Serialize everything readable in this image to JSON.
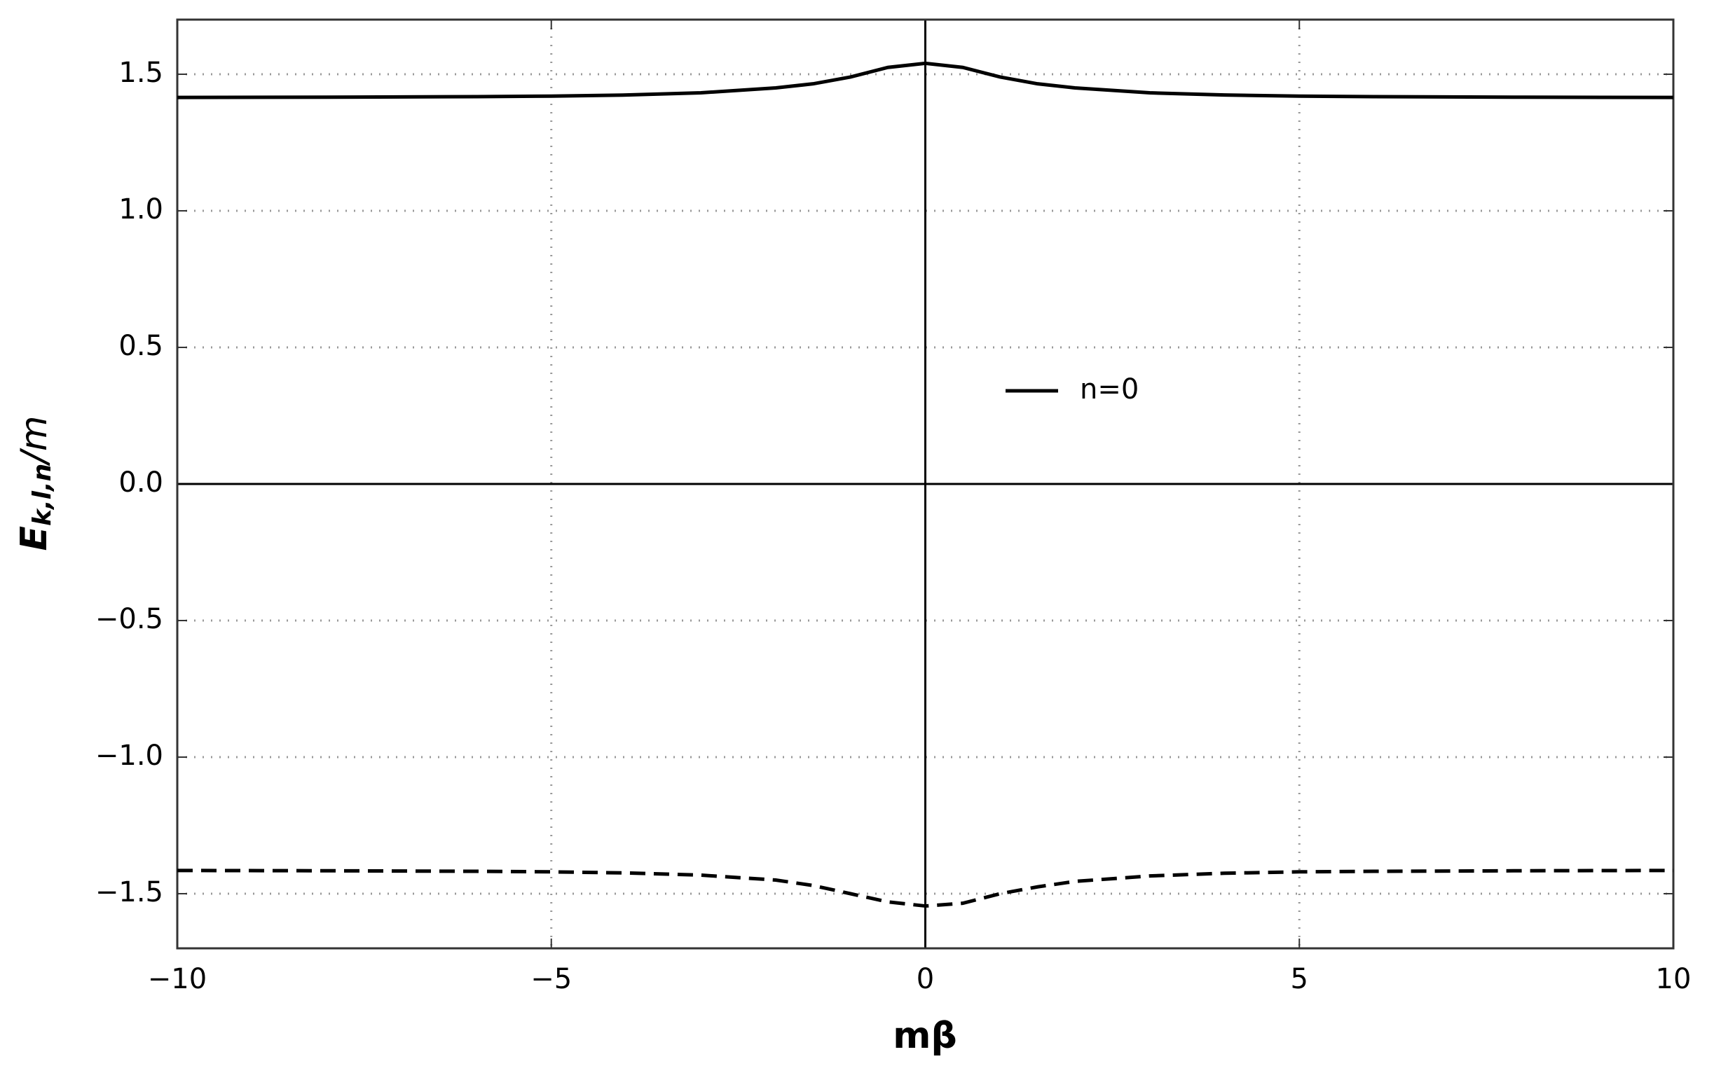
{
  "chart_data": {
    "type": "line",
    "xlabel": "mβ",
    "ylabel": [
      "E",
      "k,l,n",
      "/m"
    ],
    "x": [
      -10,
      -8,
      -6,
      -5,
      -4,
      -3,
      -2,
      -1.5,
      -1,
      -0.5,
      0,
      0.5,
      1,
      1.5,
      2,
      3,
      4,
      5,
      6,
      8,
      10
    ],
    "series": [
      {
        "name": "n=0",
        "color": "#000000",
        "dashed": false,
        "values": [
          1.415,
          1.416,
          1.418,
          1.42,
          1.424,
          1.432,
          1.45,
          1.465,
          1.49,
          1.525,
          1.54,
          1.525,
          1.49,
          1.465,
          1.45,
          1.432,
          1.424,
          1.42,
          1.418,
          1.416,
          1.415
        ]
      },
      {
        "color": "#000000",
        "dashed": true,
        "values": [
          -1.415,
          -1.416,
          -1.418,
          -1.42,
          -1.424,
          -1.432,
          -1.45,
          -1.47,
          -1.5,
          -1.53,
          -1.545,
          -1.535,
          -1.5,
          -1.475,
          -1.455,
          -1.435,
          -1.425,
          -1.42,
          -1.418,
          -1.416,
          -1.415
        ]
      }
    ],
    "xlim": [
      -10,
      10
    ],
    "ylim": [
      -1.7,
      1.7
    ],
    "xticks": [
      {
        "value": -10,
        "label": "−10"
      },
      {
        "value": -5,
        "label": "−5"
      },
      0,
      5,
      10
    ],
    "yticks": [
      {
        "value": -1.5,
        "label": "−1.5"
      },
      {
        "value": -1,
        "label": "−1.0"
      },
      {
        "value": -0.5,
        "label": "−0.5"
      },
      {
        "value": 0,
        "label": "0.0"
      },
      0.5,
      {
        "value": 1,
        "label": "1.0"
      },
      1.5
    ],
    "grid": true,
    "zero_lines": true
  }
}
